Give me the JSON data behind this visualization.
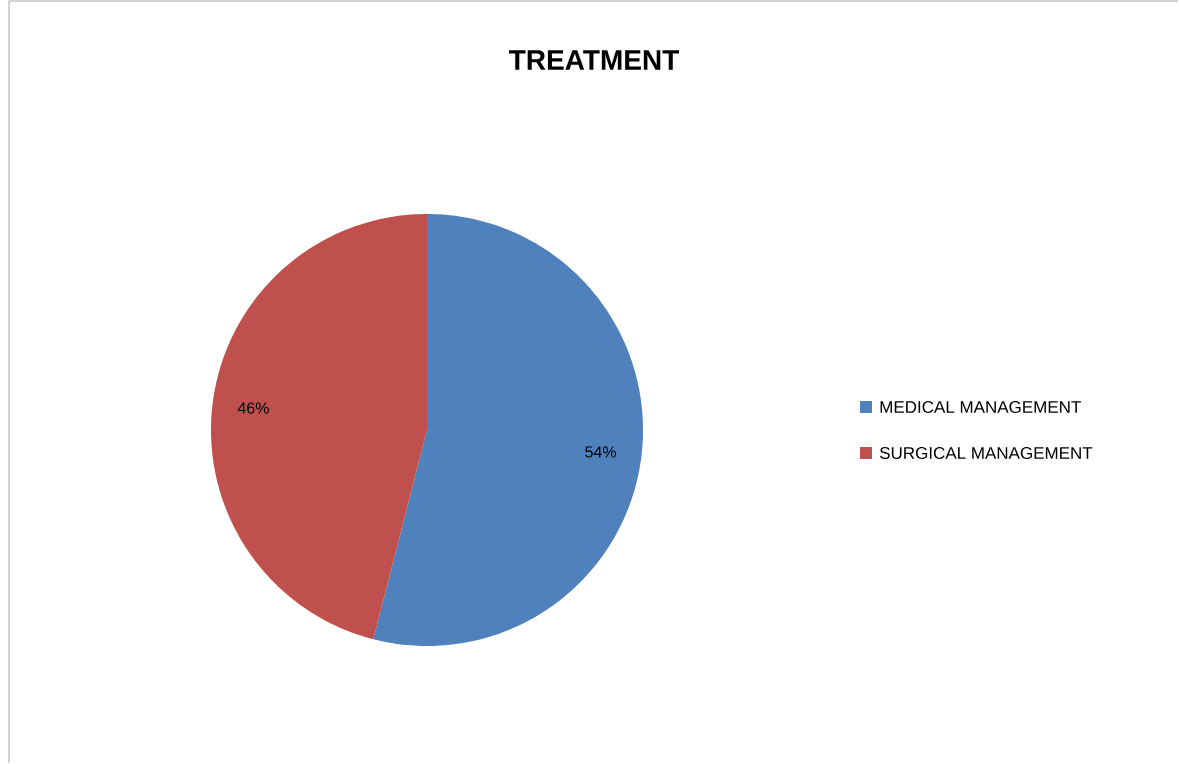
{
  "chart_data": {
    "type": "pie",
    "title": "TREATMENT",
    "categories": [
      "MEDICAL MANAGEMENT",
      "SURGICAL MANAGEMENT"
    ],
    "values": [
      54,
      46
    ],
    "colors": [
      "#4f81bd",
      "#c0504d"
    ],
    "value_labels": [
      "54%",
      "46%"
    ],
    "legend": "right"
  }
}
